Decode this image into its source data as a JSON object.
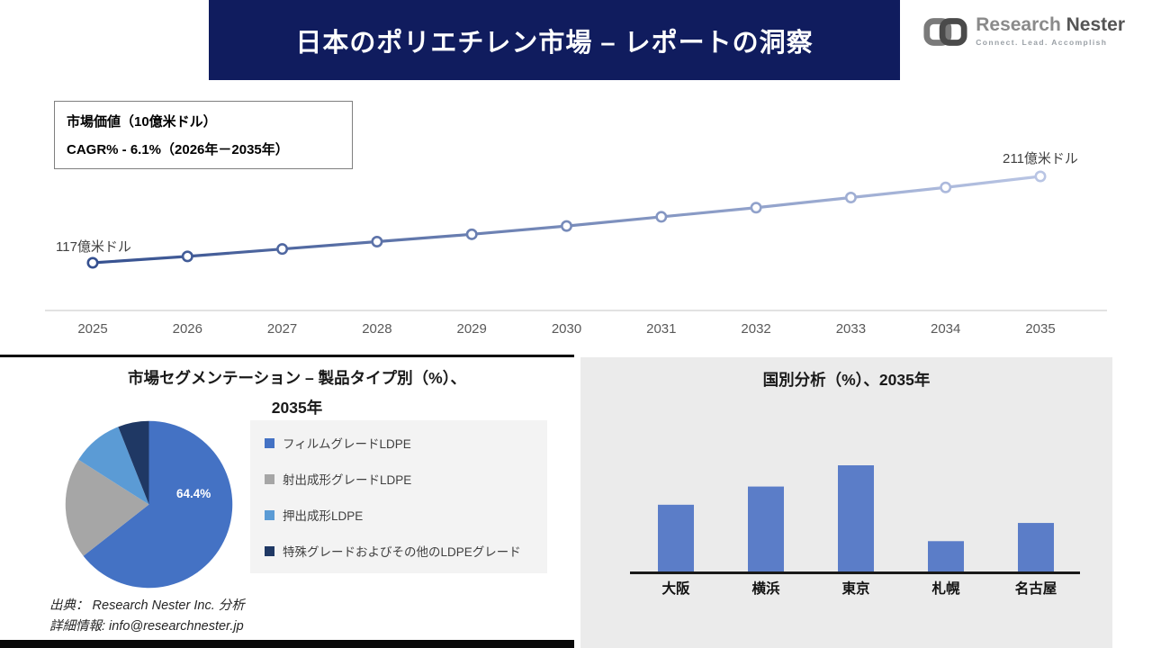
{
  "colors": {
    "header_bg": "#101c5e",
    "line_dark": "#35508f",
    "line_light": "#b9c5e4",
    "axis_gray": "#d9d9d9",
    "bar": "#5b7dc8",
    "panel_gray": "#ebebeb",
    "legend_bg": "#f3f3f3"
  },
  "header": {
    "title": "日本のポリエチレン市場 – レポートの洞察",
    "logo_name_1": "Research",
    "logo_name_2": "Nester",
    "logo_tagline": "Connect. Lead. Accomplish"
  },
  "info_box": {
    "line1": "市場価値（10億米ドル）",
    "line2": "CAGR% - 6.1%（2026年－2035年）"
  },
  "line_chart_labels": {
    "start": "117億米ドル",
    "end": "211億米ドル"
  },
  "segmentation": {
    "title_line1": "市場セグメンテーション – 製品タイプ別（%）、",
    "title_line2": "2035年",
    "pie_label": "64.4%",
    "source_line1": "出典： Research Nester Inc. 分析",
    "source_line2": "詳細情報: info@researchnester.jp"
  },
  "country": {
    "title": "国別分析（%）、2035年"
  },
  "chart_data": [
    {
      "type": "line",
      "title": "市場価値（10億米ドル）",
      "subtitle": "CAGR% - 6.1%（2026年－2035年）",
      "x": [
        "2025",
        "2026",
        "2027",
        "2028",
        "2029",
        "2030",
        "2031",
        "2032",
        "2033",
        "2034",
        "2035"
      ],
      "values": [
        117,
        124,
        132,
        140,
        148,
        157,
        167,
        177,
        188,
        199,
        211
      ],
      "annotations": [
        "117億米ドル",
        "211億米ドル"
      ],
      "ylim": [
        110,
        215
      ],
      "grid": false,
      "marker": "circle-open"
    },
    {
      "type": "pie",
      "title": "市場セグメンテーション – 製品タイプ別（%）、2035年",
      "labels": [
        "フィルムグレードLDPE",
        "射出成形グレードLDPE",
        "押出成形LDPE",
        "特殊グレードおよびその他のLDPEグレード"
      ],
      "values": [
        64.4,
        19.6,
        10.0,
        6.0
      ],
      "colors": [
        "#4472c4",
        "#a6a6a6",
        "#5b9bd5",
        "#1f3864"
      ],
      "shown_label": "64.4%",
      "legend_position": "right"
    },
    {
      "type": "bar",
      "title": "国別分析（%）、2035年",
      "categories": [
        "大阪",
        "横浜",
        "東京",
        "札幌",
        "名古屋"
      ],
      "values": [
        22,
        28,
        35,
        10,
        16
      ],
      "ylim": [
        0,
        40
      ],
      "grid": false
    }
  ]
}
